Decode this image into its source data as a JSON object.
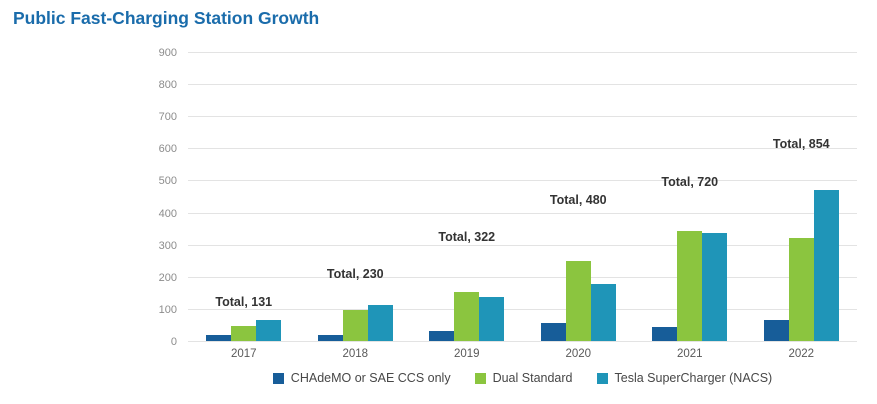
{
  "title": "Public Fast-Charging Station Growth",
  "colors": {
    "title": "#1a6cab",
    "gridline": "#e3e3e3",
    "y_tick_label": "#8c8c8c",
    "x_tick_label": "#595959",
    "total_label": "#333333"
  },
  "chart_data": {
    "type": "bar",
    "title": "Public Fast-Charging Station Growth",
    "categories": [
      "2017",
      "2018",
      "2019",
      "2020",
      "2021",
      "2022"
    ],
    "series": [
      {
        "name": "CHAdeMO or SAE CCS only",
        "key": "chademo",
        "color": "#175d99",
        "values": [
          18,
          20,
          32,
          55,
          43,
          65
        ]
      },
      {
        "name": "Dual Standard",
        "key": "dual-standard",
        "color": "#8bc53f",
        "values": [
          46,
          97,
          153,
          248,
          342,
          320
        ]
      },
      {
        "name": "Tesla SuperCharger (NACS)",
        "key": "tesla-supercharger",
        "color": "#1f95b8",
        "values": [
          67,
          113,
          137,
          177,
          335,
          469
        ]
      }
    ],
    "totals": [
      {
        "label": "Total, 131",
        "value": 131
      },
      {
        "label": "Total, 230",
        "value": 230
      },
      {
        "label": "Total, 322",
        "value": 322
      },
      {
        "label": "Total, 480",
        "value": 480
      },
      {
        "label": "Total, 720",
        "value": 720
      },
      {
        "label": "Total, 854",
        "value": 854
      }
    ],
    "xlabel": "",
    "ylabel": "",
    "ylim": [
      0,
      900
    ],
    "yticks": [
      900,
      800,
      700,
      600,
      500,
      400,
      300,
      200,
      100,
      0
    ],
    "grid": true,
    "legend_position": "bottom"
  }
}
